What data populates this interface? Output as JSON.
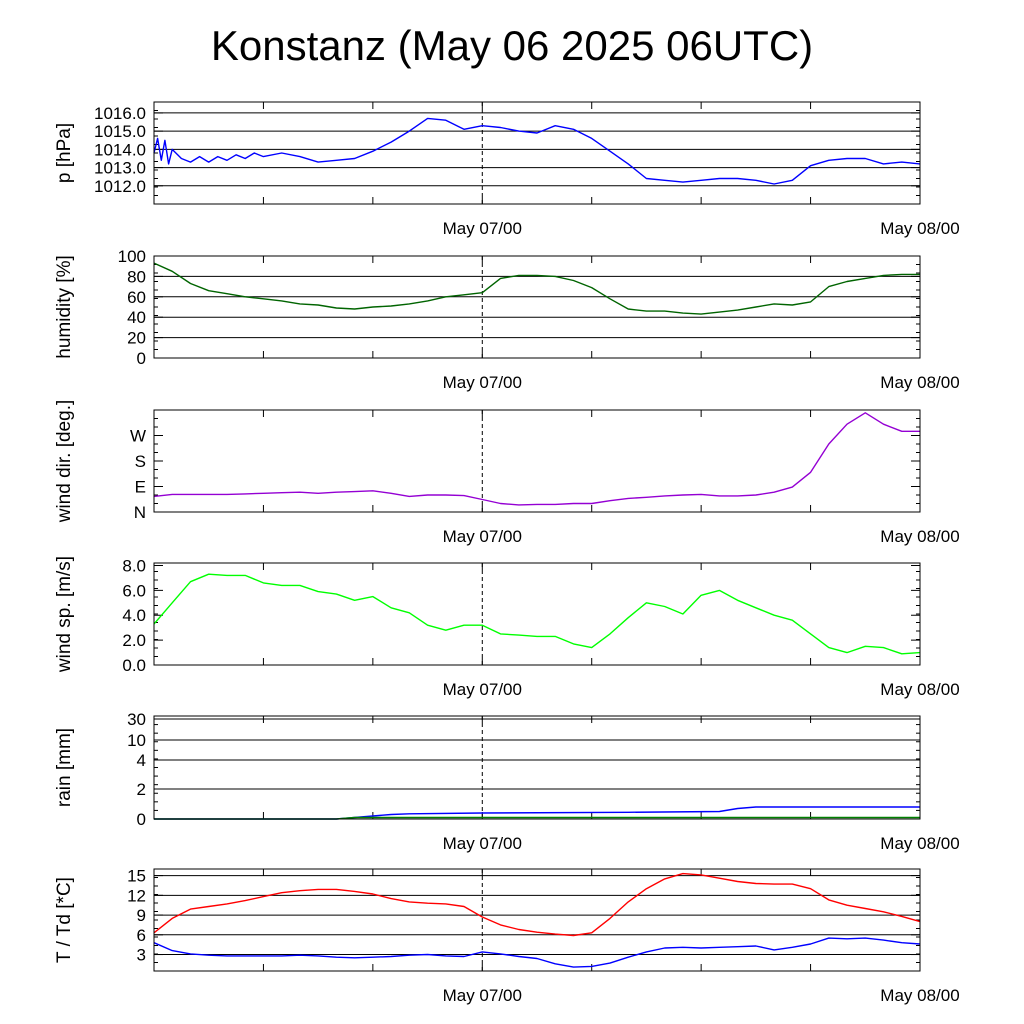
{
  "title": "Konstanz (May 06 2025 06UTC)",
  "chart_data": [
    {
      "type": "line",
      "id": "pressure",
      "ylabel": "p [hPa]",
      "ylim": [
        1011.0,
        1016.6
      ],
      "yticks": [
        1012.0,
        1013.0,
        1014.0,
        1015.0,
        1016.0
      ],
      "ytick_labels": [
        "1012.0",
        "1013.0",
        "1014.0",
        "1015.0",
        "1016.0"
      ],
      "grid": true,
      "xlim": [
        0,
        42
      ],
      "xtick_labels": [
        {
          "x": 18,
          "label": "May 07/00"
        },
        {
          "x": 42,
          "label": "May 08/00"
        }
      ],
      "series": [
        {
          "color": "#0000ff",
          "x": [
            0,
            0.2,
            0.4,
            0.6,
            0.8,
            1,
            1.5,
            2,
            2.5,
            3,
            3.5,
            4,
            4.5,
            5,
            5.5,
            6,
            7,
            8,
            9,
            10,
            11,
            12,
            13,
            14,
            15,
            16,
            17,
            18,
            19,
            20,
            21,
            22,
            23,
            24,
            25,
            26,
            27,
            28,
            29,
            30,
            31,
            32,
            33,
            34,
            35,
            36,
            37,
            38,
            39,
            40,
            41,
            42
          ],
          "y": [
            1013.8,
            1014.6,
            1013.4,
            1014.5,
            1013.2,
            1014.0,
            1013.5,
            1013.3,
            1013.6,
            1013.3,
            1013.6,
            1013.4,
            1013.7,
            1013.5,
            1013.8,
            1013.6,
            1013.8,
            1013.6,
            1013.3,
            1013.4,
            1013.5,
            1013.9,
            1014.4,
            1015.0,
            1015.7,
            1015.6,
            1015.1,
            1015.3,
            1015.2,
            1015.0,
            1014.9,
            1015.3,
            1015.1,
            1014.6,
            1013.9,
            1013.2,
            1012.4,
            1012.3,
            1012.2,
            1012.3,
            1012.4,
            1012.4,
            1012.3,
            1012.1,
            1012.3,
            1013.1,
            1013.4,
            1013.5,
            1013.5,
            1013.2,
            1013.3,
            1013.2
          ]
        }
      ]
    },
    {
      "type": "line",
      "id": "humidity",
      "ylabel": "humidity [%]",
      "ylim": [
        0,
        100
      ],
      "yticks": [
        0,
        20,
        40,
        60,
        80,
        100
      ],
      "ytick_labels": [
        "0",
        "20",
        "40",
        "60",
        "80",
        "100"
      ],
      "grid": true,
      "xlim": [
        0,
        42
      ],
      "xtick_labels": [
        {
          "x": 18,
          "label": "May 07/00"
        },
        {
          "x": 42,
          "label": "May 08/00"
        }
      ],
      "series": [
        {
          "color": "#006400",
          "x": [
            0,
            1,
            2,
            3,
            4,
            5,
            6,
            7,
            8,
            9,
            10,
            11,
            12,
            13,
            14,
            15,
            16,
            17,
            18,
            19,
            20,
            21,
            22,
            23,
            24,
            25,
            26,
            27,
            28,
            29,
            30,
            31,
            32,
            33,
            34,
            35,
            36,
            37,
            38,
            39,
            40,
            41,
            42
          ],
          "y": [
            93,
            85,
            73,
            66,
            63,
            60,
            58,
            56,
            53,
            52,
            49,
            48,
            50,
            51,
            53,
            56,
            60,
            62,
            64,
            78,
            81,
            81,
            80,
            76,
            69,
            58,
            48,
            46,
            46,
            44,
            43,
            45,
            47,
            50,
            53,
            52,
            55,
            70,
            75,
            78,
            81,
            82,
            82
          ]
        }
      ]
    },
    {
      "type": "line",
      "id": "wind_direction",
      "ylabel": "wind dir. [deg.]",
      "ylim": [
        0,
        360
      ],
      "yticks": [
        0,
        90,
        180,
        270
      ],
      "ytick_labels": [
        "N",
        "E",
        "S",
        "W"
      ],
      "grid": false,
      "xlim": [
        0,
        42
      ],
      "xtick_labels": [
        {
          "x": 18,
          "label": "May 07/00"
        },
        {
          "x": 42,
          "label": "May 08/00"
        }
      ],
      "series": [
        {
          "color": "#9400d3",
          "x": [
            0,
            1,
            2,
            3,
            4,
            5,
            6,
            7,
            8,
            9,
            10,
            11,
            12,
            13,
            14,
            15,
            16,
            17,
            18,
            19,
            20,
            21,
            22,
            23,
            24,
            25,
            26,
            27,
            28,
            29,
            30,
            31,
            32,
            33,
            34,
            35,
            36,
            37,
            38,
            39,
            40,
            41,
            42
          ],
          "y": [
            55,
            62,
            62,
            62,
            62,
            64,
            66,
            68,
            70,
            66,
            70,
            72,
            75,
            66,
            55,
            60,
            60,
            58,
            44,
            30,
            25,
            27,
            27,
            30,
            30,
            40,
            48,
            52,
            57,
            60,
            62,
            57,
            57,
            60,
            70,
            88,
            140,
            240,
            310,
            350,
            310,
            285,
            285
          ]
        }
      ]
    },
    {
      "type": "line",
      "id": "wind_speed",
      "ylabel": "wind sp. [m/s]",
      "ylim": [
        0,
        8.2
      ],
      "yticks": [
        0.0,
        2.0,
        4.0,
        6.0,
        8.0
      ],
      "ytick_labels": [
        "0.0",
        "2.0",
        "4.0",
        "6.0",
        "8.0"
      ],
      "grid": false,
      "xlim": [
        0,
        42
      ],
      "xtick_labels": [
        {
          "x": 18,
          "label": "May 07/00"
        },
        {
          "x": 42,
          "label": "May 08/00"
        }
      ],
      "series": [
        {
          "color": "#00ff00",
          "x": [
            0,
            1,
            2,
            3,
            4,
            5,
            6,
            7,
            8,
            9,
            10,
            11,
            12,
            13,
            14,
            15,
            16,
            17,
            18,
            19,
            20,
            21,
            22,
            23,
            24,
            25,
            26,
            27,
            28,
            29,
            30,
            31,
            32,
            33,
            34,
            35,
            36,
            37,
            38,
            39,
            40,
            41,
            42
          ],
          "y": [
            3.3,
            5.0,
            6.7,
            7.3,
            7.2,
            7.2,
            6.6,
            6.4,
            6.4,
            5.9,
            5.7,
            5.2,
            5.5,
            4.6,
            4.2,
            3.2,
            2.8,
            3.2,
            3.2,
            2.5,
            2.4,
            2.3,
            2.3,
            1.7,
            1.4,
            2.5,
            3.8,
            5.0,
            4.7,
            4.1,
            5.6,
            6.0,
            5.2,
            4.6,
            4.0,
            3.6,
            2.5,
            1.4,
            1.0,
            1.5,
            1.4,
            0.9,
            1.0
          ]
        }
      ]
    },
    {
      "type": "line",
      "id": "rain",
      "ylabel": "rain [mm]",
      "yticks": [
        0,
        2,
        4,
        10,
        30
      ],
      "ytick_labels": [
        "0",
        "2",
        "4",
        "10",
        "30"
      ],
      "grid": true,
      "xlim": [
        0,
        42
      ],
      "xtick_labels": [
        {
          "x": 18,
          "label": "May 07/00"
        },
        {
          "x": 42,
          "label": "May 08/00"
        }
      ],
      "series": [
        {
          "color": "#0000ff",
          "x": [
            0,
            10,
            11,
            12,
            13,
            14,
            18,
            26,
            31,
            32,
            33,
            42
          ],
          "y": [
            0,
            0,
            0.1,
            0.2,
            0.3,
            0.35,
            0.4,
            0.45,
            0.5,
            0.7,
            0.8,
            0.8
          ]
        },
        {
          "color": "#008000",
          "x": [
            0,
            10,
            11,
            12,
            13,
            42
          ],
          "y": [
            0,
            0,
            0.1,
            0.1,
            0.1,
            0.1
          ]
        }
      ]
    },
    {
      "type": "line",
      "id": "temperature",
      "ylabel": "T / Td [*C]",
      "ylim": [
        0.5,
        16
      ],
      "yticks": [
        3,
        6,
        9,
        12,
        15
      ],
      "ytick_labels": [
        "3",
        "6",
        "9",
        "12",
        "15"
      ],
      "grid": true,
      "xlim": [
        0,
        42
      ],
      "xtick_labels": [
        {
          "x": 18,
          "label": "May 07/00"
        },
        {
          "x": 42,
          "label": "May 08/00"
        }
      ],
      "series": [
        {
          "color": "#ff0000",
          "x": [
            0,
            1,
            2,
            3,
            4,
            5,
            6,
            7,
            8,
            9,
            10,
            11,
            12,
            13,
            14,
            15,
            16,
            17,
            18,
            19,
            20,
            21,
            22,
            23,
            24,
            25,
            26,
            27,
            28,
            29,
            30,
            31,
            32,
            33,
            34,
            35,
            36,
            37,
            38,
            39,
            40,
            41,
            42
          ],
          "y": [
            6.3,
            8.5,
            9.9,
            10.3,
            10.7,
            11.2,
            11.8,
            12.4,
            12.7,
            12.9,
            12.9,
            12.6,
            12.2,
            11.5,
            11.0,
            10.8,
            10.7,
            10.3,
            8.7,
            7.5,
            6.8,
            6.4,
            6.1,
            5.9,
            6.3,
            8.5,
            11.0,
            13.0,
            14.5,
            15.3,
            15.1,
            14.6,
            14.1,
            13.8,
            13.7,
            13.7,
            13.0,
            11.3,
            10.5,
            10.0,
            9.5,
            8.8,
            8.0
          ]
        },
        {
          "color": "#0000ff",
          "x": [
            0,
            1,
            2,
            3,
            4,
            5,
            6,
            7,
            8,
            9,
            10,
            11,
            12,
            13,
            14,
            15,
            16,
            17,
            18,
            19,
            20,
            21,
            22,
            23,
            24,
            25,
            26,
            27,
            28,
            29,
            30,
            31,
            32,
            33,
            34,
            35,
            36,
            37,
            38,
            39,
            40,
            41,
            42
          ],
          "y": [
            4.8,
            3.6,
            3.1,
            2.9,
            2.8,
            2.8,
            2.8,
            2.8,
            2.9,
            2.8,
            2.6,
            2.5,
            2.6,
            2.7,
            2.9,
            3.0,
            2.8,
            2.7,
            3.4,
            3.1,
            2.7,
            2.4,
            1.6,
            1.1,
            1.2,
            1.7,
            2.6,
            3.4,
            4.0,
            4.1,
            4.0,
            4.1,
            4.2,
            4.3,
            3.7,
            4.1,
            4.6,
            5.5,
            5.4,
            5.5,
            5.2,
            4.8,
            4.6
          ]
        }
      ]
    }
  ]
}
